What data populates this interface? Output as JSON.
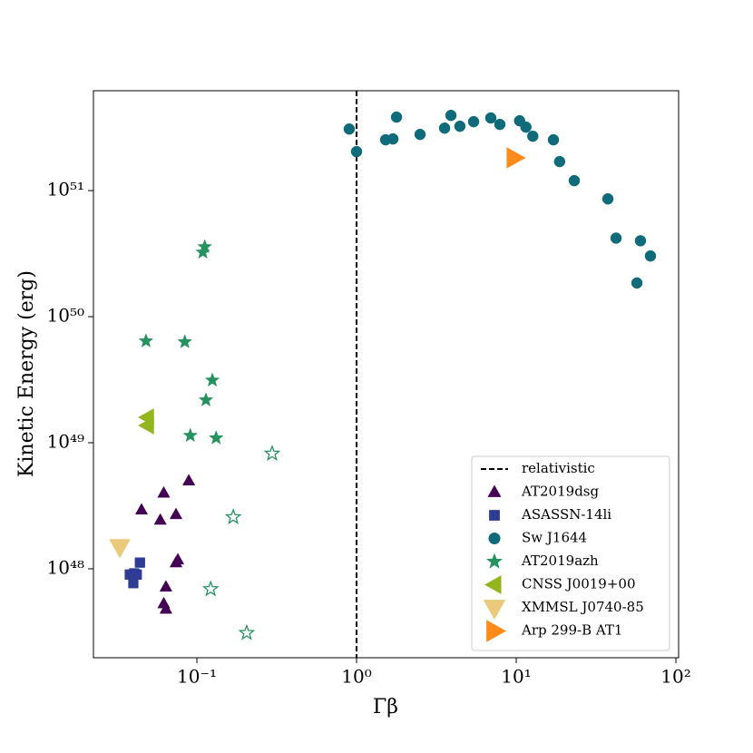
{
  "chart_data": {
    "type": "scatter",
    "x_label": "Γβ",
    "y_label": "Kinetic Energy (erg)",
    "x_log": true,
    "y_log": true,
    "xlim": [
      0.0225,
      104
    ],
    "ylim": [
      1.97e+47,
      6.2e+51
    ],
    "xticks": [
      {
        "value": 0.1,
        "label": "10⁻¹"
      },
      {
        "value": 1,
        "label": "10⁰"
      },
      {
        "value": 10,
        "label": "10¹"
      },
      {
        "value": 100,
        "label": "10²"
      }
    ],
    "yticks": [
      {
        "value": 1e+48,
        "label": "10⁴⁸"
      },
      {
        "value": 1e+49,
        "label": "10⁴⁹"
      },
      {
        "value": 1e+50,
        "label": "10⁵⁰"
      },
      {
        "value": 1e+51,
        "label": "10⁵¹"
      }
    ],
    "legend": "lower right",
    "reference_lines": [
      {
        "x": 1,
        "name": "relativistic",
        "color": "#000000"
      }
    ],
    "series": [
      {
        "name": "AT2019dsg",
        "color": "#440154",
        "marker": "^",
        "size": 7,
        "x": [
          0.045,
          0.062,
          0.089,
          0.059,
          0.074,
          0.076,
          0.074,
          0.064,
          0.062,
          0.064
        ],
        "y": [
          2.94e+48,
          4e+48,
          5e+48,
          2.44e+48,
          2.7e+48,
          1.18e+48,
          1.12e+48,
          7.2e+47,
          5.3e+47,
          4.8e+47
        ]
      },
      {
        "name": "ASASSN-14li",
        "color": "#2e3c93",
        "marker": "s",
        "size": 6,
        "x": [
          0.044,
          0.0405,
          0.038,
          0.042,
          0.04
        ],
        "y": [
          1.12e+48,
          9.2e+47,
          9e+47,
          9e+47,
          7.7e+47
        ]
      },
      {
        "name": "Sw J1644",
        "color": "#0f6b7a",
        "marker": "o",
        "size": 6,
        "x": [
          0.9,
          1.0,
          1.52,
          1.69,
          1.78,
          2.5,
          3.56,
          3.9,
          4.44,
          5.41,
          6.93,
          7.9,
          10.5,
          11.5,
          12.7,
          17.1,
          18.7,
          23.1,
          37.5,
          42.2,
          60.0,
          69.3,
          57.0
        ],
        "y": [
          3.08e+51,
          2.04e+51,
          2.53e+51,
          2.57e+51,
          3.83e+51,
          2.79e+51,
          3.13e+51,
          3.95e+51,
          3.24e+51,
          3.52e+51,
          3.77e+51,
          3.35e+51,
          3.58e+51,
          3.19e+51,
          2.7e+51,
          2.53e+51,
          1.7e+51,
          1.2e+51,
          8.6e+50,
          4.2e+50,
          4e+50,
          3.03e+50,
          1.85e+50
        ]
      },
      {
        "name": "AT2019azh",
        "color": "#25925f",
        "marker": "*",
        "size": 8,
        "x": [
          0.112,
          0.109,
          0.048,
          0.084,
          0.125,
          0.114,
          0.091,
          0.132,
          0.296,
          0.169,
          0.122,
          0.205
        ],
        "y": [
          3.58e+50,
          3.24e+50,
          6.4e+49,
          6.3e+49,
          3.13e+49,
          2.18e+49,
          1.14e+49,
          1.09e+49,
          8.2e+48,
          2.57e+48,
          6.9e+47,
          3.1e+47
        ],
        "filled": [
          true,
          true,
          true,
          true,
          true,
          true,
          true,
          true,
          false,
          false,
          false,
          false
        ]
      },
      {
        "name": "CNSS J0019+00",
        "color": "#93b51f",
        "marker": "<",
        "size": 10,
        "x": [
          0.049,
          0.049
        ],
        "y": [
          1.59e+49,
          1.37e+49
        ]
      },
      {
        "name": "XMMSL J0740-85",
        "color": "#ebc97c",
        "marker": "v",
        "size": 12,
        "x": [
          0.0329
        ],
        "y": [
          1.49e+48
        ]
      },
      {
        "name": "Arp 299-B AT1",
        "color": "#ff8c1a",
        "marker": ">",
        "size": 12,
        "x": [
          9.75
        ],
        "y": [
          1.82e+51
        ]
      }
    ]
  }
}
